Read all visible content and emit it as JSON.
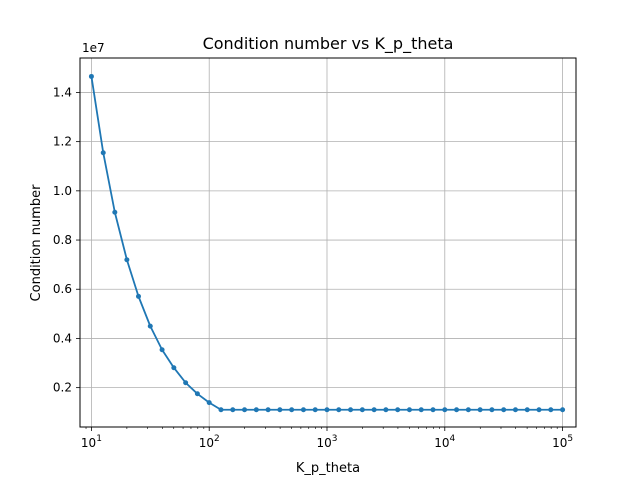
{
  "chart_data": {
    "type": "line",
    "title": "Condition number vs K_p_theta",
    "xlabel": "K_p_theta",
    "ylabel": "Condition number",
    "y_offset_label": "1e7",
    "x_scale": "log",
    "xlim": [
      8,
      130000
    ],
    "ylim": [
      0.04,
      1.54
    ],
    "x_ticks": [
      {
        "value": 10,
        "base": "10",
        "exp": "1"
      },
      {
        "value": 100,
        "base": "10",
        "exp": "2"
      },
      {
        "value": 1000,
        "base": "10",
        "exp": "3"
      },
      {
        "value": 10000,
        "base": "10",
        "exp": "4"
      },
      {
        "value": 100000,
        "base": "10",
        "exp": "5"
      }
    ],
    "y_ticks": [
      "0.2",
      "0.4",
      "0.6",
      "0.8",
      "1.0",
      "1.2",
      "1.4"
    ],
    "grid": true,
    "line_color": "#1f77b4",
    "series": [
      {
        "x": [
          10,
          12.6,
          15.8,
          20,
          25.1,
          31.6,
          39.8,
          50.1,
          63.1,
          79.4,
          100,
          125.9,
          158.5,
          199.5,
          251.2,
          316.2,
          398.1,
          501.2,
          631,
          794.3,
          1000,
          1258.9,
          1584.9,
          1995.3,
          2511.9,
          3162.3,
          3981.1,
          5011.9,
          6309.6,
          7943.3,
          10000,
          12589.3,
          15848.9,
          19952.6,
          25118.9,
          31622.8,
          39810.7,
          50118.7,
          63095.7,
          79432.8,
          100000
        ],
        "values": [
          1.465,
          1.155,
          0.913,
          0.72,
          0.571,
          0.45,
          0.354,
          0.281,
          0.22,
          0.175,
          0.139,
          0.11,
          0.11,
          0.11,
          0.11,
          0.11,
          0.11,
          0.11,
          0.11,
          0.11,
          0.11,
          0.11,
          0.11,
          0.11,
          0.11,
          0.11,
          0.11,
          0.11,
          0.11,
          0.11,
          0.11,
          0.11,
          0.11,
          0.11,
          0.11,
          0.11,
          0.11,
          0.11,
          0.11,
          0.11,
          0.11
        ]
      }
    ]
  }
}
